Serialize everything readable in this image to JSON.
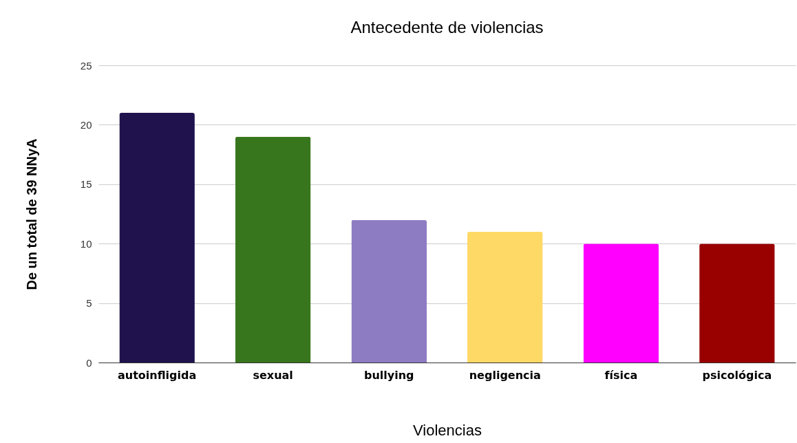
{
  "chart_data": {
    "type": "bar",
    "title": "Antecedente de violencias",
    "xlabel": "Violencias",
    "ylabel": "De un total de 39 NNyA",
    "categories": [
      "autoinfligida",
      "sexual",
      "bullying",
      "negligencia",
      "física",
      "psicológica"
    ],
    "values": [
      21,
      19,
      12,
      11,
      10,
      10
    ],
    "colors": [
      "#20124d",
      "#38761d",
      "#8e7cc3",
      "#ffd966",
      "#ff00ff",
      "#990000"
    ],
    "ylim": [
      0,
      25
    ],
    "yticks": [
      0,
      5,
      10,
      15,
      20,
      25
    ],
    "grid": "y",
    "legend": false
  }
}
